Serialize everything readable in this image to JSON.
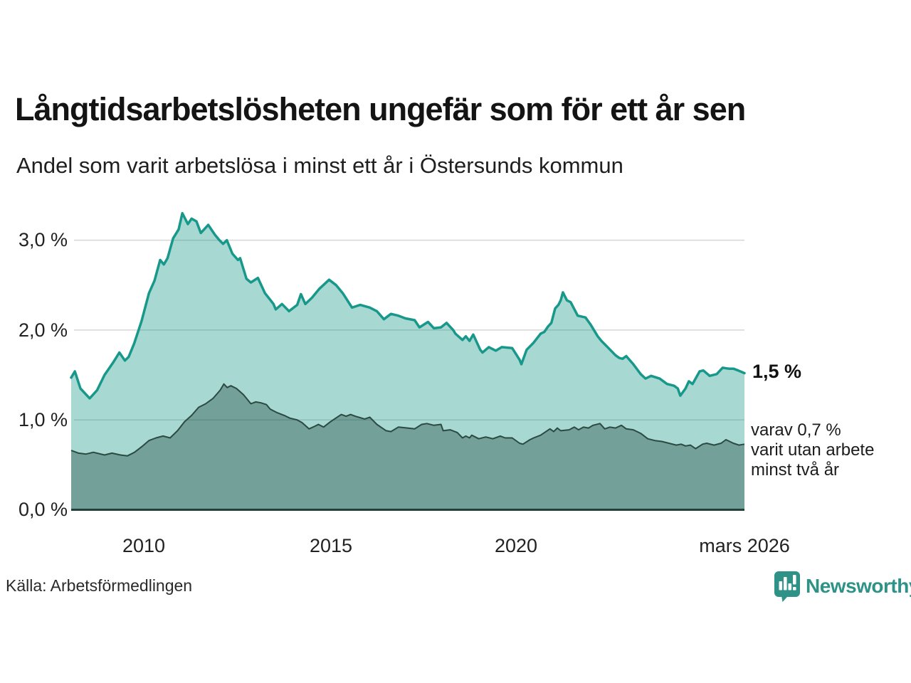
{
  "header": {
    "title": "Långtidsarbetslösheten ungefär som för ett år sen",
    "subtitle": "Andel som varit arbetslösa i minst ett år i Östersunds kommun"
  },
  "chart_data": {
    "type": "area",
    "title": "Långtidsarbetslösheten ungefär som för ett år sen",
    "subtitle": "Andel som varit arbetslösa i minst ett år i Östersunds kommun",
    "x_axis": {
      "range": [
        2008.0,
        2026.17
      ],
      "ticks": [
        {
          "label": "2010",
          "year": 2010
        },
        {
          "label": "2015",
          "year": 2015
        },
        {
          "label": "2020",
          "year": 2020
        },
        {
          "label": "mars 2026",
          "year": 2026.17
        }
      ]
    },
    "y_axis": {
      "range": [
        0,
        3.45
      ],
      "unit": "%",
      "gridlines": [
        1,
        2,
        3
      ],
      "ticks": [
        {
          "label": "0,0 %",
          "value": 0
        },
        {
          "label": "1,0 %",
          "value": 1
        },
        {
          "label": "2,0 %",
          "value": 2
        },
        {
          "label": "3,0 %",
          "value": 3
        }
      ]
    },
    "style": {
      "grid_color": "#d6d6d6",
      "axis_color": "#22403a",
      "accent_teal": "#17988a",
      "dark_green": "#2b4a42"
    },
    "series": [
      {
        "name": "minst ett år",
        "color": "#17988a",
        "fill": "rgba(23,152,136,0.38)",
        "stroke_width": 3.5,
        "end_value": "1,5 %",
        "points": [
          [
            2008.0,
            1.47
          ],
          [
            2008.1,
            1.54
          ],
          [
            2008.25,
            1.35
          ],
          [
            2008.5,
            1.24
          ],
          [
            2008.7,
            1.33
          ],
          [
            2008.9,
            1.5
          ],
          [
            2009.0,
            1.56
          ],
          [
            2009.15,
            1.65
          ],
          [
            2009.3,
            1.75
          ],
          [
            2009.45,
            1.66
          ],
          [
            2009.55,
            1.7
          ],
          [
            2009.7,
            1.85
          ],
          [
            2009.9,
            2.1
          ],
          [
            2010.1,
            2.41
          ],
          [
            2010.25,
            2.55
          ],
          [
            2010.4,
            2.78
          ],
          [
            2010.5,
            2.73
          ],
          [
            2010.6,
            2.8
          ],
          [
            2010.75,
            3.02
          ],
          [
            2010.9,
            3.12
          ],
          [
            2011.0,
            3.3
          ],
          [
            2011.15,
            3.18
          ],
          [
            2011.25,
            3.24
          ],
          [
            2011.38,
            3.21
          ],
          [
            2011.5,
            3.08
          ],
          [
            2011.7,
            3.17
          ],
          [
            2011.88,
            3.06
          ],
          [
            2012.0,
            3.0
          ],
          [
            2012.1,
            2.96
          ],
          [
            2012.2,
            3.0
          ],
          [
            2012.35,
            2.85
          ],
          [
            2012.5,
            2.78
          ],
          [
            2012.56,
            2.8
          ],
          [
            2012.73,
            2.57
          ],
          [
            2012.85,
            2.53
          ],
          [
            2013.04,
            2.58
          ],
          [
            2013.23,
            2.41
          ],
          [
            2013.46,
            2.29
          ],
          [
            2013.52,
            2.23
          ],
          [
            2013.69,
            2.29
          ],
          [
            2013.88,
            2.21
          ],
          [
            2014.1,
            2.28
          ],
          [
            2014.2,
            2.4
          ],
          [
            2014.32,
            2.29
          ],
          [
            2014.5,
            2.36
          ],
          [
            2014.7,
            2.46
          ],
          [
            2014.96,
            2.56
          ],
          [
            2015.15,
            2.5
          ],
          [
            2015.33,
            2.41
          ],
          [
            2015.58,
            2.25
          ],
          [
            2015.8,
            2.28
          ],
          [
            2016.06,
            2.25
          ],
          [
            2016.25,
            2.21
          ],
          [
            2016.44,
            2.12
          ],
          [
            2016.63,
            2.18
          ],
          [
            2016.83,
            2.16
          ],
          [
            2017.02,
            2.13
          ],
          [
            2017.27,
            2.11
          ],
          [
            2017.4,
            2.03
          ],
          [
            2017.63,
            2.09
          ],
          [
            2017.79,
            2.02
          ],
          [
            2017.98,
            2.03
          ],
          [
            2018.13,
            2.08
          ],
          [
            2018.31,
            2.0
          ],
          [
            2018.37,
            1.96
          ],
          [
            2018.56,
            1.89
          ],
          [
            2018.65,
            1.93
          ],
          [
            2018.75,
            1.88
          ],
          [
            2018.85,
            1.95
          ],
          [
            2019.04,
            1.78
          ],
          [
            2019.1,
            1.75
          ],
          [
            2019.27,
            1.81
          ],
          [
            2019.46,
            1.77
          ],
          [
            2019.62,
            1.81
          ],
          [
            2019.9,
            1.8
          ],
          [
            2020.1,
            1.67
          ],
          [
            2020.15,
            1.62
          ],
          [
            2020.29,
            1.78
          ],
          [
            2020.48,
            1.86
          ],
          [
            2020.67,
            1.96
          ],
          [
            2020.77,
            1.98
          ],
          [
            2020.87,
            2.04
          ],
          [
            2020.96,
            2.08
          ],
          [
            2021.06,
            2.24
          ],
          [
            2021.15,
            2.28
          ],
          [
            2021.21,
            2.33
          ],
          [
            2021.27,
            2.42
          ],
          [
            2021.38,
            2.33
          ],
          [
            2021.48,
            2.31
          ],
          [
            2021.67,
            2.16
          ],
          [
            2021.88,
            2.14
          ],
          [
            2022.02,
            2.06
          ],
          [
            2022.21,
            1.93
          ],
          [
            2022.31,
            1.88
          ],
          [
            2022.5,
            1.8
          ],
          [
            2022.69,
            1.72
          ],
          [
            2022.79,
            1.69
          ],
          [
            2022.88,
            1.68
          ],
          [
            2022.98,
            1.71
          ],
          [
            2023.17,
            1.62
          ],
          [
            2023.37,
            1.51
          ],
          [
            2023.5,
            1.46
          ],
          [
            2023.65,
            1.49
          ],
          [
            2023.88,
            1.46
          ],
          [
            2024.08,
            1.4
          ],
          [
            2024.27,
            1.38
          ],
          [
            2024.37,
            1.35
          ],
          [
            2024.44,
            1.27
          ],
          [
            2024.58,
            1.35
          ],
          [
            2024.67,
            1.43
          ],
          [
            2024.77,
            1.4
          ],
          [
            2024.96,
            1.54
          ],
          [
            2025.06,
            1.55
          ],
          [
            2025.23,
            1.49
          ],
          [
            2025.42,
            1.51
          ],
          [
            2025.58,
            1.58
          ],
          [
            2025.75,
            1.57
          ],
          [
            2025.87,
            1.57
          ],
          [
            2026.0,
            1.55
          ],
          [
            2026.17,
            1.52
          ]
        ]
      },
      {
        "name": "minst två år",
        "color": "#2b4a42",
        "fill": "rgba(10,50,40,0.33)",
        "stroke_width": 2,
        "end_value": "0,7 %",
        "points": [
          [
            2008.0,
            0.66
          ],
          [
            2008.2,
            0.63
          ],
          [
            2008.4,
            0.62
          ],
          [
            2008.6,
            0.64
          ],
          [
            2008.9,
            0.61
          ],
          [
            2009.1,
            0.63
          ],
          [
            2009.33,
            0.61
          ],
          [
            2009.52,
            0.6
          ],
          [
            2009.71,
            0.64
          ],
          [
            2009.9,
            0.7
          ],
          [
            2010.1,
            0.77
          ],
          [
            2010.29,
            0.8
          ],
          [
            2010.48,
            0.82
          ],
          [
            2010.67,
            0.8
          ],
          [
            2010.87,
            0.88
          ],
          [
            2011.06,
            0.98
          ],
          [
            2011.25,
            1.05
          ],
          [
            2011.44,
            1.14
          ],
          [
            2011.63,
            1.18
          ],
          [
            2011.83,
            1.24
          ],
          [
            2012.02,
            1.33
          ],
          [
            2012.12,
            1.4
          ],
          [
            2012.21,
            1.36
          ],
          [
            2012.31,
            1.38
          ],
          [
            2012.46,
            1.35
          ],
          [
            2012.65,
            1.28
          ],
          [
            2012.85,
            1.18
          ],
          [
            2012.98,
            1.2
          ],
          [
            2013.12,
            1.19
          ],
          [
            2013.27,
            1.17
          ],
          [
            2013.37,
            1.12
          ],
          [
            2013.56,
            1.08
          ],
          [
            2013.75,
            1.05
          ],
          [
            2013.9,
            1.02
          ],
          [
            2014.1,
            1.0
          ],
          [
            2014.23,
            0.97
          ],
          [
            2014.42,
            0.9
          ],
          [
            2014.58,
            0.93
          ],
          [
            2014.67,
            0.95
          ],
          [
            2014.81,
            0.92
          ],
          [
            2015.0,
            0.98
          ],
          [
            2015.29,
            1.06
          ],
          [
            2015.42,
            1.04
          ],
          [
            2015.54,
            1.06
          ],
          [
            2015.67,
            1.04
          ],
          [
            2015.92,
            1.01
          ],
          [
            2016.06,
            1.03
          ],
          [
            2016.25,
            0.95
          ],
          [
            2016.5,
            0.88
          ],
          [
            2016.63,
            0.87
          ],
          [
            2016.83,
            0.92
          ],
          [
            2017.08,
            0.91
          ],
          [
            2017.27,
            0.9
          ],
          [
            2017.46,
            0.95
          ],
          [
            2017.6,
            0.96
          ],
          [
            2017.79,
            0.94
          ],
          [
            2017.98,
            0.95
          ],
          [
            2018.04,
            0.88
          ],
          [
            2018.23,
            0.89
          ],
          [
            2018.42,
            0.86
          ],
          [
            2018.56,
            0.8
          ],
          [
            2018.65,
            0.82
          ],
          [
            2018.75,
            0.8
          ],
          [
            2018.81,
            0.83
          ],
          [
            2019.0,
            0.79
          ],
          [
            2019.19,
            0.81
          ],
          [
            2019.38,
            0.79
          ],
          [
            2019.58,
            0.82
          ],
          [
            2019.71,
            0.8
          ],
          [
            2019.9,
            0.8
          ],
          [
            2020.1,
            0.74
          ],
          [
            2020.19,
            0.73
          ],
          [
            2020.38,
            0.78
          ],
          [
            2020.48,
            0.8
          ],
          [
            2020.67,
            0.83
          ],
          [
            2020.92,
            0.9
          ],
          [
            2021.02,
            0.87
          ],
          [
            2021.12,
            0.91
          ],
          [
            2021.21,
            0.88
          ],
          [
            2021.44,
            0.89
          ],
          [
            2021.58,
            0.92
          ],
          [
            2021.69,
            0.89
          ],
          [
            2021.83,
            0.92
          ],
          [
            2021.96,
            0.91
          ],
          [
            2022.08,
            0.94
          ],
          [
            2022.27,
            0.96
          ],
          [
            2022.4,
            0.9
          ],
          [
            2022.54,
            0.92
          ],
          [
            2022.69,
            0.91
          ],
          [
            2022.85,
            0.94
          ],
          [
            2022.98,
            0.9
          ],
          [
            2023.17,
            0.89
          ],
          [
            2023.37,
            0.85
          ],
          [
            2023.56,
            0.79
          ],
          [
            2023.75,
            0.77
          ],
          [
            2023.94,
            0.76
          ],
          [
            2024.13,
            0.74
          ],
          [
            2024.33,
            0.72
          ],
          [
            2024.46,
            0.73
          ],
          [
            2024.58,
            0.71
          ],
          [
            2024.71,
            0.72
          ],
          [
            2024.85,
            0.68
          ],
          [
            2025.04,
            0.73
          ],
          [
            2025.15,
            0.74
          ],
          [
            2025.35,
            0.72
          ],
          [
            2025.54,
            0.74
          ],
          [
            2025.67,
            0.78
          ],
          [
            2025.87,
            0.74
          ],
          [
            2026.02,
            0.72
          ],
          [
            2026.17,
            0.73
          ]
        ]
      }
    ],
    "annotations": {
      "end_value_label": "1,5 %",
      "sub_label_lines": [
        "varav 0,7 %",
        "varit utan arbete",
        "minst två år"
      ]
    },
    "legend_position": "none",
    "grid": true
  },
  "footer": {
    "source": "Källa: Arbetsförmedlingen",
    "brand": "Newsworthy"
  },
  "icons": {
    "logo": "bar-chart-speech-bubble-icon"
  },
  "colors": {
    "brand_teal": "#2e9287",
    "line_teal": "#17988a",
    "line_dark_green": "#2b4a42",
    "area_light": "rgba(23,152,136,0.38)",
    "area_dark": "rgba(10,50,40,0.33)"
  }
}
